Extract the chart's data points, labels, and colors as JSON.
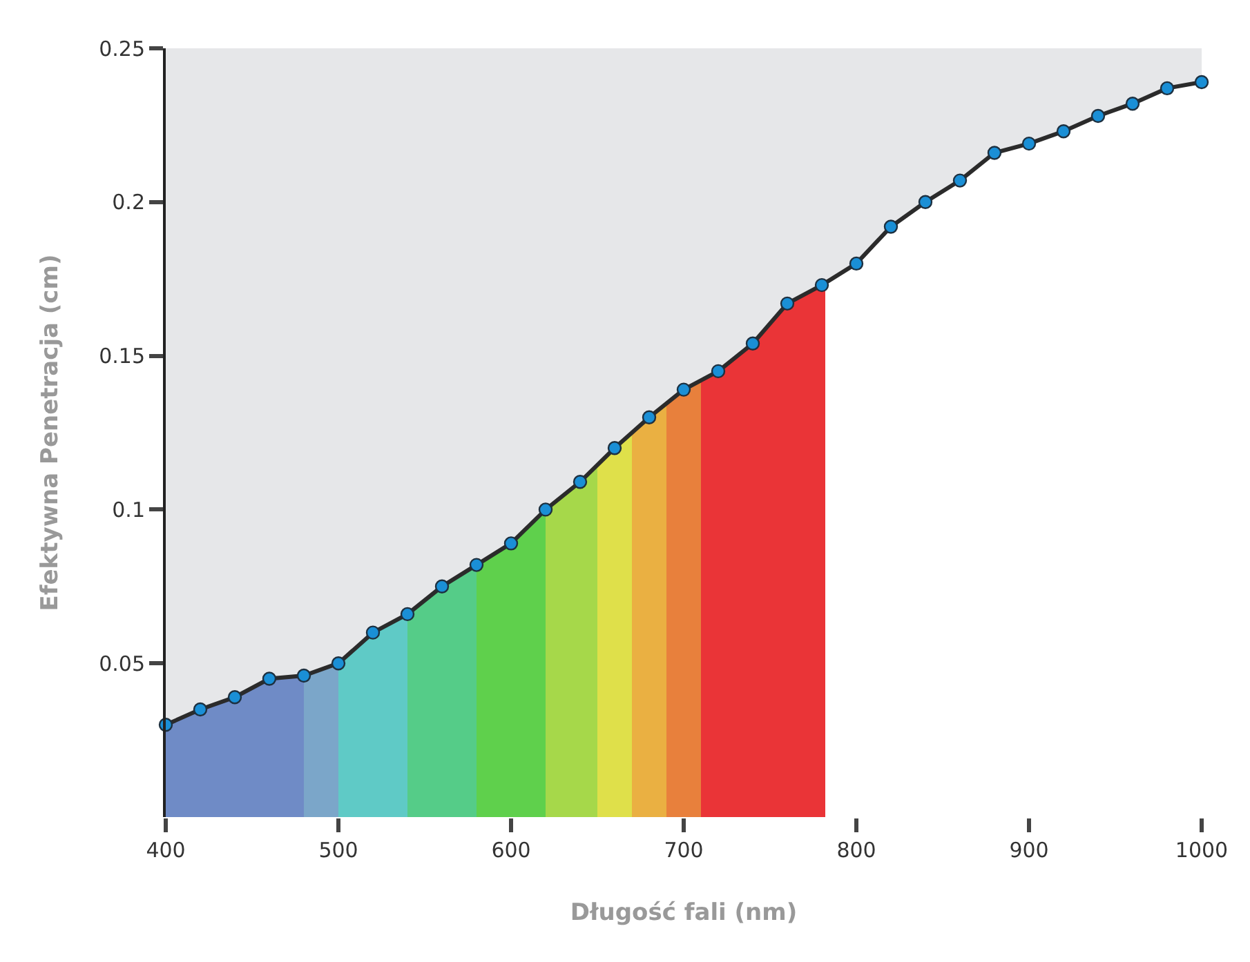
{
  "chart_data": {
    "type": "line",
    "xlabel": "Długość fali (nm)",
    "ylabel": "Efektywna Penetracja (cm)",
    "x": [
      400,
      420,
      440,
      460,
      480,
      500,
      520,
      540,
      560,
      580,
      600,
      620,
      640,
      660,
      680,
      700,
      720,
      740,
      760,
      780,
      800,
      820,
      840,
      860,
      880,
      900,
      920,
      940,
      960,
      980,
      1000
    ],
    "series": [
      {
        "color": "#1a8fd6",
        "values": [
          0.03,
          0.035,
          0.039,
          0.045,
          0.046,
          0.05,
          0.06,
          0.066,
          0.075,
          0.082,
          0.089,
          0.1,
          0.109,
          0.12,
          0.13,
          0.139,
          0.145,
          0.154,
          0.167,
          0.173,
          0.18,
          0.192,
          0.2,
          0.207,
          0.216,
          0.219,
          0.223,
          0.228,
          0.232,
          0.237,
          0.239
        ]
      }
    ],
    "marker": "circle",
    "line_style": "solid",
    "grid": false,
    "legend": false,
    "xlim": [
      400,
      1000
    ],
    "xticks": [
      400,
      500,
      600,
      700,
      800,
      900,
      1000
    ],
    "ylim": [
      0,
      0.25
    ],
    "yticks": [
      0.05,
      0.1,
      0.15,
      0.2,
      0.25
    ],
    "bands": [
      {
        "axis": "x",
        "from": 400,
        "to": 480,
        "color": "#6f8bc6"
      },
      {
        "axis": "x",
        "from": 480,
        "to": 500,
        "color": "#7ba6c9"
      },
      {
        "axis": "x",
        "from": 500,
        "to": 540,
        "color": "#5fcac6"
      },
      {
        "axis": "x",
        "from": 540,
        "to": 580,
        "color": "#55cc88"
      },
      {
        "axis": "x",
        "from": 580,
        "to": 620,
        "color": "#5fd04c"
      },
      {
        "axis": "x",
        "from": 620,
        "to": 650,
        "color": "#a6d84a"
      },
      {
        "axis": "x",
        "from": 650,
        "to": 670,
        "color": "#dfe04a"
      },
      {
        "axis": "x",
        "from": 670,
        "to": 690,
        "color": "#eab042"
      },
      {
        "axis": "x",
        "from": 690,
        "to": 710,
        "color": "#e8803c"
      },
      {
        "axis": "x",
        "from": 710,
        "to": 782,
        "color": "#ea3437"
      },
      {
        "axis": "x",
        "from": 782,
        "to": 1000,
        "color": "#ffffff"
      }
    ]
  }
}
